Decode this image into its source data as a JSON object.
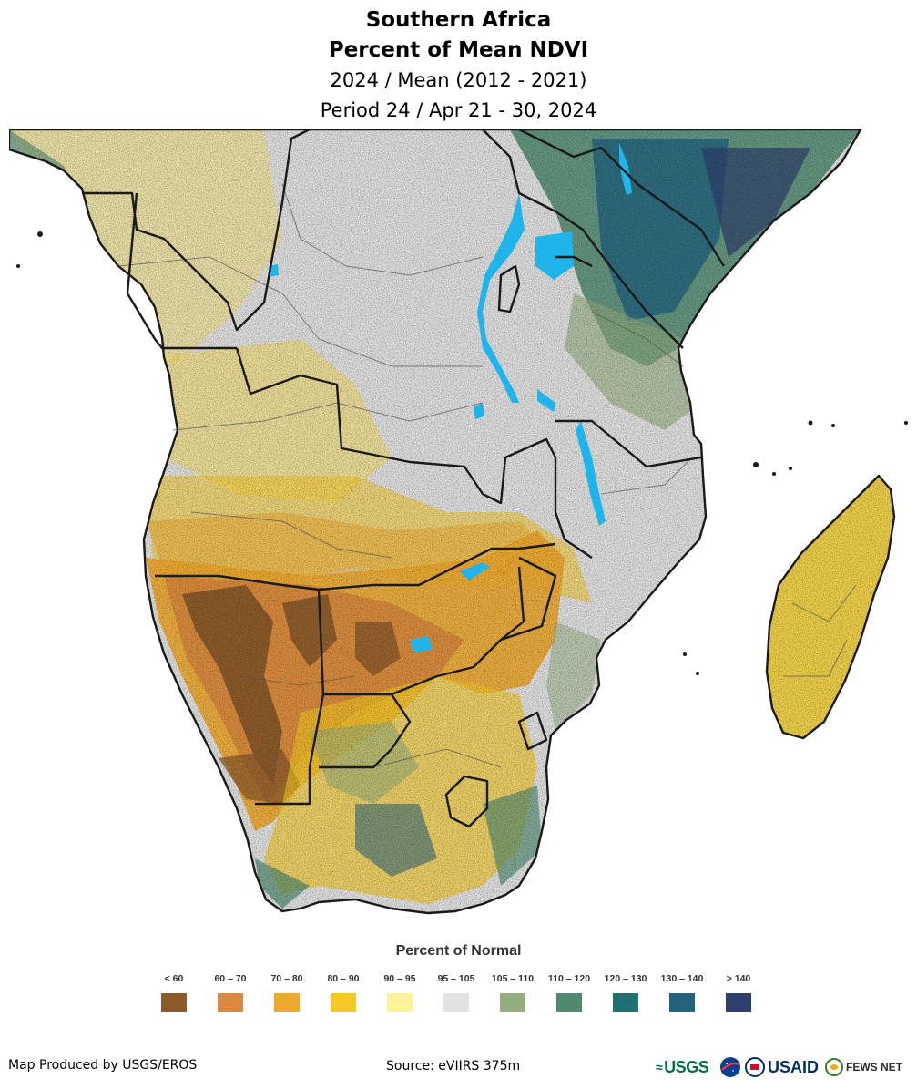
{
  "title": {
    "line1": "Southern Africa",
    "line2": "Percent of Mean NDVI",
    "line3": "2024 / Mean (2012 - 2021)",
    "line4": "Period 24 / Apr 21 - 30, 2024"
  },
  "legend": {
    "title": "Percent of Normal",
    "items": [
      {
        "label": "< 60",
        "color": "#8a5a2b"
      },
      {
        "label": "60 – 70",
        "color": "#d98a3e"
      },
      {
        "label": "70 – 80",
        "color": "#eea82e"
      },
      {
        "label": "80 – 90",
        "color": "#f5c825"
      },
      {
        "label": "90 – 95",
        "color": "#fbf29a"
      },
      {
        "label": "95 – 105",
        "color": "#e2e2e2"
      },
      {
        "label": "105 – 110",
        "color": "#93ad7e"
      },
      {
        "label": "110 – 120",
        "color": "#4f8a6e"
      },
      {
        "label": "120 – 130",
        "color": "#1f6f73"
      },
      {
        "label": "130 – 140",
        "color": "#22647f"
      },
      {
        "label": "> 140",
        "color": "#2d3f6e"
      }
    ]
  },
  "footer": {
    "producer": "Map Produced by USGS/EROS",
    "source": "Source: eVIIRS 375m"
  },
  "logos": {
    "usgs": "USGS",
    "usaid": "USAID",
    "fews": "FEWS NET"
  },
  "map": {
    "water_color": "#1fb5ea",
    "border_color": "#1a1a1a",
    "admin_color": "#555555"
  }
}
